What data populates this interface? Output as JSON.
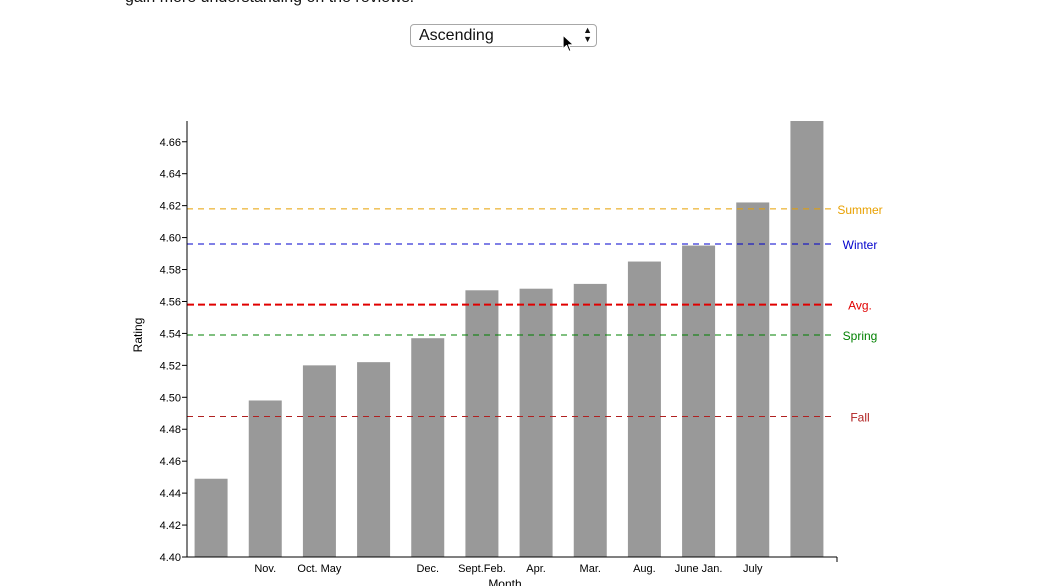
{
  "intro_text": "gain more understanding on the reviews.",
  "sort_select": {
    "selected": "Ascending",
    "icon": "chevron-updown-icon"
  },
  "chart_data": {
    "type": "bar",
    "xlabel": "Month",
    "ylabel": "Rating",
    "ylim": [
      4.4,
      4.673
    ],
    "yticks": [
      "4.40",
      "4.42",
      "4.44",
      "4.46",
      "4.48",
      "4.50",
      "4.52",
      "4.54",
      "4.56",
      "4.58",
      "4.60",
      "4.62",
      "4.64",
      "4.66"
    ],
    "bars": [
      {
        "values": 4.449,
        "label": ""
      },
      {
        "values": 4.498,
        "label": "Nov."
      },
      {
        "values": 4.52,
        "label": "Oct. May"
      },
      {
        "values": 4.522,
        "label": ""
      },
      {
        "values": 4.537,
        "label": "Dec."
      },
      {
        "values": 4.567,
        "label": "Sept.Feb."
      },
      {
        "values": 4.568,
        "label": "Apr."
      },
      {
        "values": 4.571,
        "label": "Mar."
      },
      {
        "values": 4.585,
        "label": "Aug."
      },
      {
        "values": 4.595,
        "label": "June Jan."
      },
      {
        "values": 4.622,
        "label": "July"
      },
      {
        "values": 4.673,
        "label": ""
      }
    ],
    "reference_lines": [
      {
        "name": "Summer",
        "value": 4.618,
        "color": "#e8a000",
        "style": "dashed-thin"
      },
      {
        "name": "Winter",
        "value": 4.596,
        "color": "#0000cc",
        "style": "dashed-thin"
      },
      {
        "name": "Avg.",
        "value": 4.558,
        "color": "#e00000",
        "style": "dashed-bold"
      },
      {
        "name": "Spring",
        "value": 4.539,
        "color": "#008000",
        "style": "dashed-thin"
      },
      {
        "name": "Fall",
        "value": 4.488,
        "color": "#b02020",
        "style": "dashed-thin"
      }
    ],
    "bar_color": "#999999",
    "grid": false
  }
}
